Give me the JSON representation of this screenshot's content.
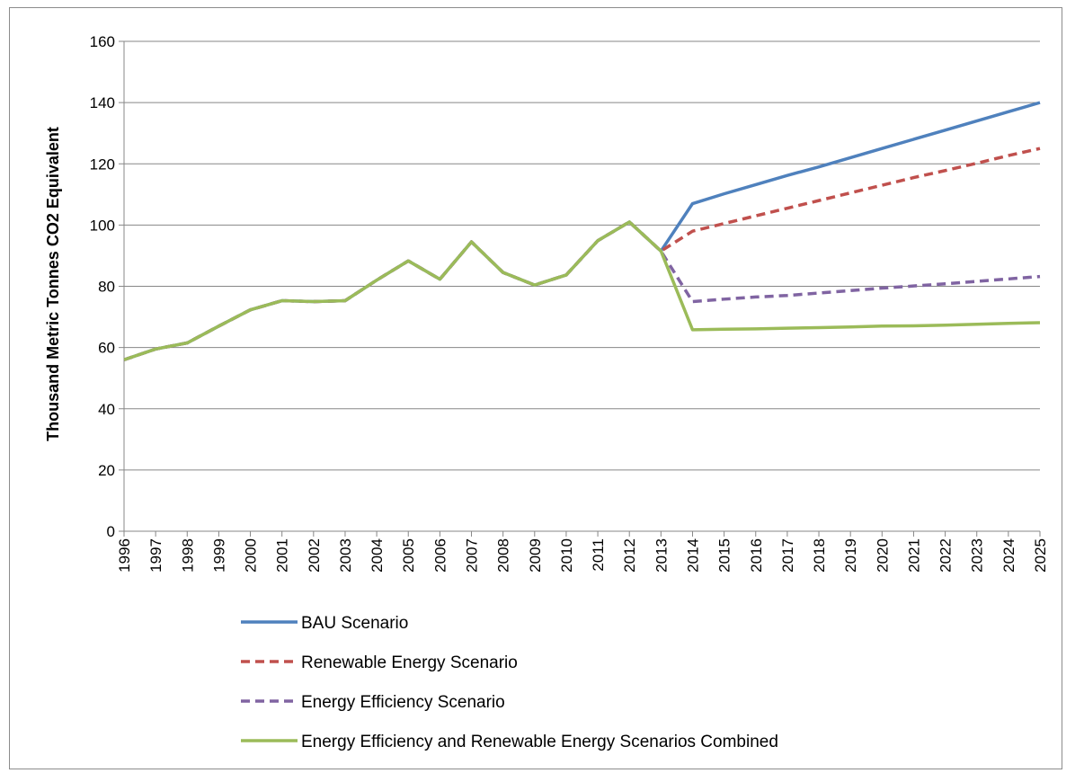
{
  "chart_data": {
    "type": "line",
    "title": "",
    "xlabel": "",
    "ylabel": "Thousand Metric Tonnes CO2 Equivalent",
    "ylim": [
      0,
      160
    ],
    "yticks": [
      0,
      20,
      40,
      60,
      80,
      100,
      120,
      140,
      160
    ],
    "grid": true,
    "legend_position": "bottom",
    "x": [
      1996,
      1997,
      1998,
      1999,
      2000,
      2001,
      2002,
      2003,
      2004,
      2005,
      2006,
      2007,
      2008,
      2009,
      2010,
      2011,
      2012,
      2013,
      2014,
      2015,
      2016,
      2017,
      2018,
      2019,
      2020,
      2021,
      2022,
      2023,
      2024,
      2025
    ],
    "series": [
      {
        "name": "BAU Scenario",
        "color": "#4f81bd",
        "dash": "solid",
        "values": [
          56,
          59.5,
          61.5,
          67,
          72.3,
          75.3,
          75,
          75.3,
          82,
          88.3,
          82.3,
          94.5,
          84.5,
          80.4,
          83.7,
          94.9,
          101,
          91.5,
          107,
          110.2,
          113.2,
          116.2,
          119,
          122,
          125,
          128,
          131,
          134,
          137,
          140
        ]
      },
      {
        "name": "Renewable Energy Scenario",
        "color": "#c0504d",
        "dash": "dashed",
        "values": [
          56,
          59.5,
          61.5,
          67,
          72.3,
          75.3,
          75,
          75.3,
          82,
          88.3,
          82.3,
          94.5,
          84.5,
          80.4,
          83.7,
          94.9,
          101,
          91.5,
          98,
          100.5,
          103,
          105.5,
          108,
          110.5,
          113,
          115.5,
          117.8,
          120.2,
          122.7,
          125
        ]
      },
      {
        "name": "Energy Efficiency Scenario",
        "color": "#8064a2",
        "dash": "dashed",
        "values": [
          56,
          59.5,
          61.5,
          67,
          72.3,
          75.3,
          75,
          75.3,
          82,
          88.3,
          82.3,
          94.5,
          84.5,
          80.4,
          83.7,
          94.9,
          101,
          91.5,
          75,
          75.8,
          76.5,
          77,
          77.8,
          78.6,
          79.4,
          80.1,
          80.8,
          81.6,
          82.4,
          83.2
        ]
      },
      {
        "name": "Energy Efficiency and Renewable Energy Scenarios Combined",
        "color": "#9bbb59",
        "dash": "solid",
        "values": [
          56,
          59.5,
          61.5,
          67,
          72.3,
          75.3,
          75,
          75.3,
          82,
          88.3,
          82.3,
          94.5,
          84.5,
          80.4,
          83.7,
          94.9,
          101,
          91.5,
          65.8,
          66,
          66.1,
          66.3,
          66.5,
          66.7,
          67,
          67.1,
          67.3,
          67.6,
          67.9,
          68.1
        ]
      }
    ]
  }
}
